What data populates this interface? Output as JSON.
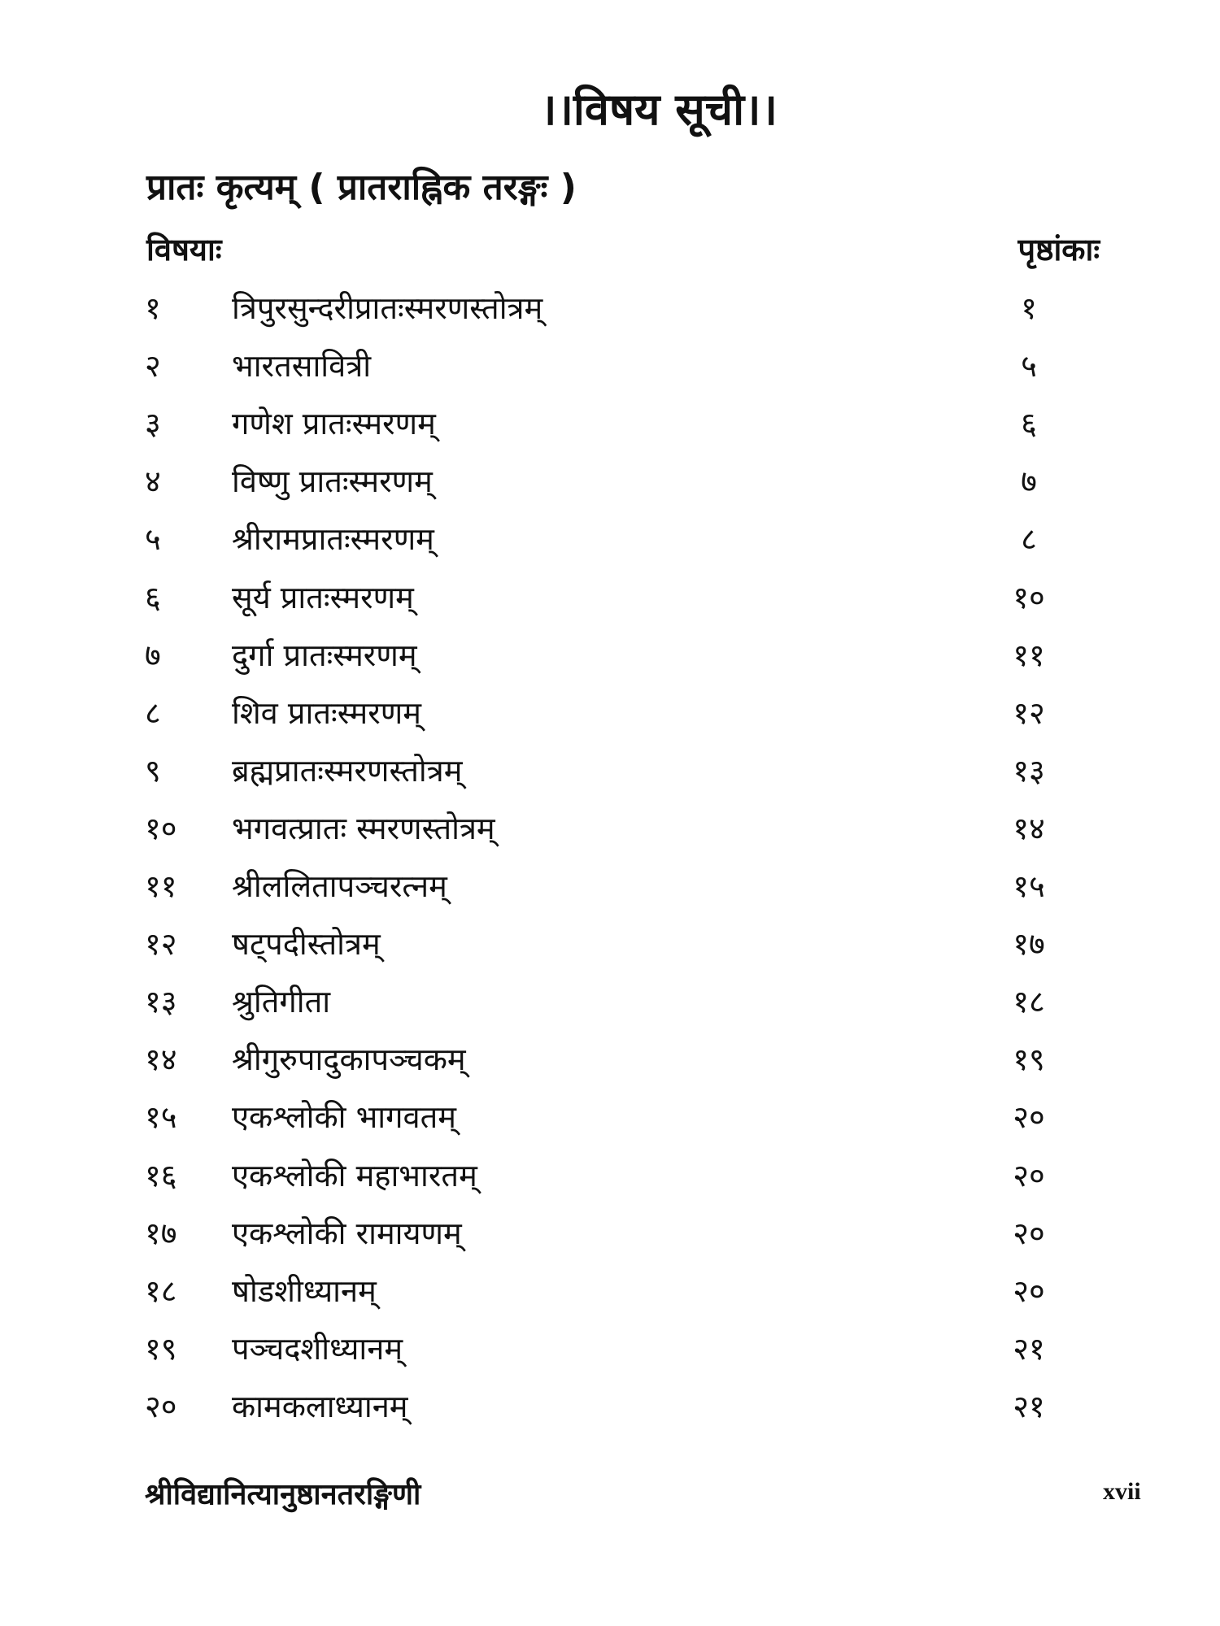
{
  "title": "।।विषय सूची।।",
  "section_heading": "प्रातः कृत्यम् ( प्रातराह्निक तरङ्गः )",
  "columns": {
    "topic": "विषयाः",
    "page": "पृष्ठांकाः"
  },
  "entries": [
    {
      "num": "१",
      "title": "त्रिपुरसुन्दरीप्रातःस्मरणस्तोत्रम्",
      "page": "१"
    },
    {
      "num": "२",
      "title": "भारतसावित्री",
      "page": "५"
    },
    {
      "num": "३",
      "title": "गणेश प्रातःस्मरणम्",
      "page": "६"
    },
    {
      "num": "४",
      "title": "विष्णु प्रातःस्मरणम्",
      "page": "७"
    },
    {
      "num": "५",
      "title": "श्रीरामप्रातःस्मरणम्",
      "page": "८"
    },
    {
      "num": "६",
      "title": "सूर्य प्रातःस्मरणम्",
      "page": "१०"
    },
    {
      "num": "७",
      "title": "दुर्गा प्रातःस्मरणम्",
      "page": "११"
    },
    {
      "num": "८",
      "title": "शिव प्रातःस्मरणम्",
      "page": "१२"
    },
    {
      "num": "९",
      "title": "ब्रह्मप्रातःस्मरणस्तोत्रम्",
      "page": "१३"
    },
    {
      "num": "१०",
      "title": "भगवत्प्रातः स्मरणस्तोत्रम्",
      "page": "१४"
    },
    {
      "num": "११",
      "title": "श्रीललितापञ्चरत्नम्",
      "page": "१५"
    },
    {
      "num": "१२",
      "title": "षट्पदीस्तोत्रम्",
      "page": "१७"
    },
    {
      "num": "१३",
      "title": "श्रुतिगीता",
      "page": "१८"
    },
    {
      "num": "१४",
      "title": "श्रीगुरुपादुकापञ्चकम्",
      "page": "१९"
    },
    {
      "num": "१५",
      "title": "एकश्लोकी भागवतम्",
      "page": "२०"
    },
    {
      "num": "१६",
      "title": "एकश्लोकी महाभारतम्",
      "page": "२०"
    },
    {
      "num": "१७",
      "title": "एकश्लोकी रामायणम्",
      "page": "२०"
    },
    {
      "num": "१८",
      "title": "षोडशीध्यानम्",
      "page": "२०"
    },
    {
      "num": "१९",
      "title": "पञ्चदशीध्यानम्",
      "page": "२१"
    },
    {
      "num": "२०",
      "title": "कामकलाध्यानम्",
      "page": "२१"
    }
  ],
  "footer": {
    "book_title": "श्रीविद्यानित्यानुष्ठानतरङ्गिणी",
    "page_number": "xvii"
  }
}
